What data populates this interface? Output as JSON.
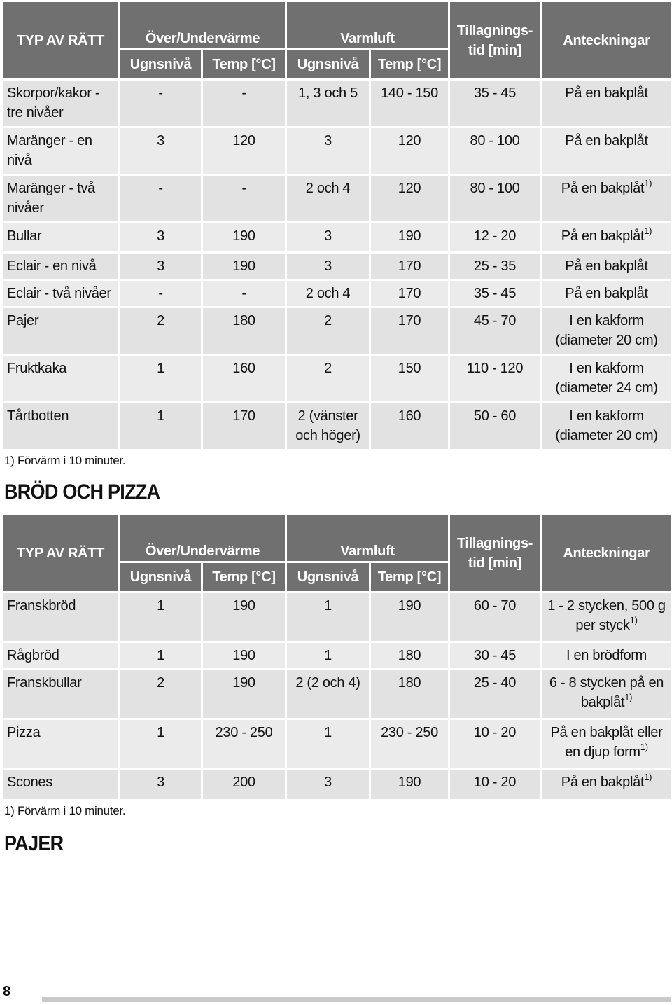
{
  "table1": {
    "headers": {
      "dish": "TYP AV RÄTT",
      "conventional": "Över/Undervärme",
      "fan": "Varmluft",
      "shelf": "Ugnsnivå",
      "temp": "Temp [°C]",
      "time": "Tillagnings- tid [min]",
      "notes": "Anteckningar"
    },
    "rows": [
      {
        "dish": "Skorpor/kakor - tre nivåer",
        "c_shelf": "-",
        "c_temp": "-",
        "f_shelf": "1, 3 och 5",
        "f_temp": "140 - 150",
        "time": "35 - 45",
        "note": "På en bakplåt",
        "sup": ""
      },
      {
        "dish": "Maränger - en nivå",
        "c_shelf": "3",
        "c_temp": "120",
        "f_shelf": "3",
        "f_temp": "120",
        "time": "80 - 100",
        "note": "På en bakplåt",
        "sup": ""
      },
      {
        "dish": "Maränger - två nivåer",
        "c_shelf": "-",
        "c_temp": "-",
        "f_shelf": "2 och 4",
        "f_temp": "120",
        "time": "80 - 100",
        "note": "På en bakplåt",
        "sup": "1)"
      },
      {
        "dish": "Bullar",
        "c_shelf": "3",
        "c_temp": "190",
        "f_shelf": "3",
        "f_temp": "190",
        "time": "12 - 20",
        "note": "På en bakplåt",
        "sup": "1)"
      },
      {
        "dish": "Eclair - en nivå",
        "c_shelf": "3",
        "c_temp": "190",
        "f_shelf": "3",
        "f_temp": "170",
        "time": "25 - 35",
        "note": "På en bakplåt",
        "sup": ""
      },
      {
        "dish": "Eclair - två nivåer",
        "c_shelf": "-",
        "c_temp": "-",
        "f_shelf": "2 och 4",
        "f_temp": "170",
        "time": "35 - 45",
        "note": "På en bakplåt",
        "sup": ""
      },
      {
        "dish": "Pajer",
        "c_shelf": "2",
        "c_temp": "180",
        "f_shelf": "2",
        "f_temp": "170",
        "time": "45 - 70",
        "note": "I en kakform (diameter 20 cm)",
        "sup": ""
      },
      {
        "dish": "Fruktkaka",
        "c_shelf": "1",
        "c_temp": "160",
        "f_shelf": "2",
        "f_temp": "150",
        "time": "110 - 120",
        "note": "I en kakform (diameter 24 cm)",
        "sup": ""
      },
      {
        "dish": "Tårtbotten",
        "c_shelf": "1",
        "c_temp": "170",
        "f_shelf": "2 (vänster och höger)",
        "f_temp": "160",
        "time": "50 - 60",
        "note": "I en kakform (diameter 20 cm)",
        "sup": ""
      }
    ],
    "footnote": "1) Förvärm i 10 minuter."
  },
  "section2_title": "BRÖD OCH PIZZA",
  "table2": {
    "headers": {
      "dish": "TYP AV RÄTT",
      "conventional": "Över/Undervärme",
      "fan": "Varmluft",
      "shelf": "Ugnsnivå",
      "temp": "Temp [°C]",
      "time": "Tillagnings- tid [min]",
      "notes": "Anteckningar"
    },
    "rows": [
      {
        "dish": "Franskbröd",
        "c_shelf": "1",
        "c_temp": "190",
        "f_shelf": "1",
        "f_temp": "190",
        "time": "60 - 70",
        "note": "1 - 2 stycken, 500 g per styck",
        "sup": "1)"
      },
      {
        "dish": "Rågbröd",
        "c_shelf": "1",
        "c_temp": "190",
        "f_shelf": "1",
        "f_temp": "180",
        "time": "30 - 45",
        "note": "I en brödform",
        "sup": ""
      },
      {
        "dish": "Franskbullar",
        "c_shelf": "2",
        "c_temp": "190",
        "f_shelf": "2 (2 och 4)",
        "f_temp": "180",
        "time": "25 - 40",
        "note": "6 - 8 stycken på en bakplåt",
        "sup": "1)"
      },
      {
        "dish": "Pizza",
        "c_shelf": "1",
        "c_temp": "230 - 250",
        "f_shelf": "1",
        "f_temp": "230 - 250",
        "time": "10 - 20",
        "note": "På en bakplåt eller en djup form",
        "sup": "1)"
      },
      {
        "dish": "Scones",
        "c_shelf": "3",
        "c_temp": "200",
        "f_shelf": "3",
        "f_temp": "190",
        "time": "10 - 20",
        "note": "På en bakplåt",
        "sup": "1)"
      }
    ],
    "footnote": "1) Förvärm i 10 minuter."
  },
  "section3_title": "PAJER",
  "page_number": "8"
}
